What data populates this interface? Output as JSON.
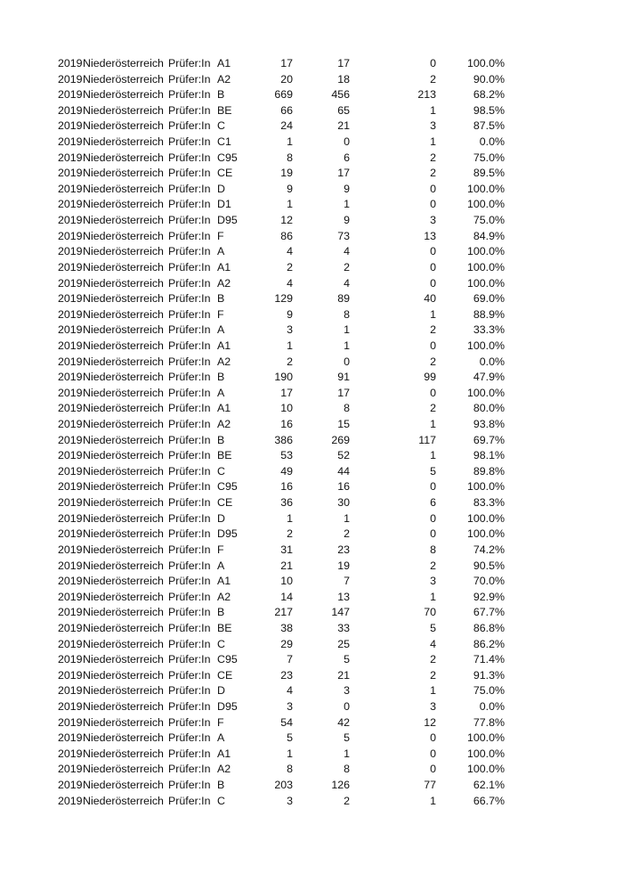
{
  "rows": [
    [
      "2019",
      "Niederösterreich",
      "Prüfer:In",
      "A1",
      "17",
      "17",
      "0",
      "100.0%"
    ],
    [
      "2019",
      "Niederösterreich",
      "Prüfer:In",
      "A2",
      "20",
      "18",
      "2",
      "90.0%"
    ],
    [
      "2019",
      "Niederösterreich",
      "Prüfer:In",
      "B",
      "669",
      "456",
      "213",
      "68.2%"
    ],
    [
      "2019",
      "Niederösterreich",
      "Prüfer:In",
      "BE",
      "66",
      "65",
      "1",
      "98.5%"
    ],
    [
      "2019",
      "Niederösterreich",
      "Prüfer:In",
      "C",
      "24",
      "21",
      "3",
      "87.5%"
    ],
    [
      "2019",
      "Niederösterreich",
      "Prüfer:In",
      "C1",
      "1",
      "0",
      "1",
      "0.0%"
    ],
    [
      "2019",
      "Niederösterreich",
      "Prüfer:In",
      "C95",
      "8",
      "6",
      "2",
      "75.0%"
    ],
    [
      "2019",
      "Niederösterreich",
      "Prüfer:In",
      "CE",
      "19",
      "17",
      "2",
      "89.5%"
    ],
    [
      "2019",
      "Niederösterreich",
      "Prüfer:In",
      "D",
      "9",
      "9",
      "0",
      "100.0%"
    ],
    [
      "2019",
      "Niederösterreich",
      "Prüfer:In",
      "D1",
      "1",
      "1",
      "0",
      "100.0%"
    ],
    [
      "2019",
      "Niederösterreich",
      "Prüfer:In",
      "D95",
      "12",
      "9",
      "3",
      "75.0%"
    ],
    [
      "2019",
      "Niederösterreich",
      "Prüfer:In",
      "F",
      "86",
      "73",
      "13",
      "84.9%"
    ],
    [
      "2019",
      "Niederösterreich",
      "Prüfer:In",
      "A",
      "4",
      "4",
      "0",
      "100.0%"
    ],
    [
      "2019",
      "Niederösterreich",
      "Prüfer:In",
      "A1",
      "2",
      "2",
      "0",
      "100.0%"
    ],
    [
      "2019",
      "Niederösterreich",
      "Prüfer:In",
      "A2",
      "4",
      "4",
      "0",
      "100.0%"
    ],
    [
      "2019",
      "Niederösterreich",
      "Prüfer:In",
      "B",
      "129",
      "89",
      "40",
      "69.0%"
    ],
    [
      "2019",
      "Niederösterreich",
      "Prüfer:In",
      "F",
      "9",
      "8",
      "1",
      "88.9%"
    ],
    [
      "2019",
      "Niederösterreich",
      "Prüfer:In",
      "A",
      "3",
      "1",
      "2",
      "33.3%"
    ],
    [
      "2019",
      "Niederösterreich",
      "Prüfer:In",
      "A1",
      "1",
      "1",
      "0",
      "100.0%"
    ],
    [
      "2019",
      "Niederösterreich",
      "Prüfer:In",
      "A2",
      "2",
      "0",
      "2",
      "0.0%"
    ],
    [
      "2019",
      "Niederösterreich",
      "Prüfer:In",
      "B",
      "190",
      "91",
      "99",
      "47.9%"
    ],
    [
      "2019",
      "Niederösterreich",
      "Prüfer:In",
      "A",
      "17",
      "17",
      "0",
      "100.0%"
    ],
    [
      "2019",
      "Niederösterreich",
      "Prüfer:In",
      "A1",
      "10",
      "8",
      "2",
      "80.0%"
    ],
    [
      "2019",
      "Niederösterreich",
      "Prüfer:In",
      "A2",
      "16",
      "15",
      "1",
      "93.8%"
    ],
    [
      "2019",
      "Niederösterreich",
      "Prüfer:In",
      "B",
      "386",
      "269",
      "117",
      "69.7%"
    ],
    [
      "2019",
      "Niederösterreich",
      "Prüfer:In",
      "BE",
      "53",
      "52",
      "1",
      "98.1%"
    ],
    [
      "2019",
      "Niederösterreich",
      "Prüfer:In",
      "C",
      "49",
      "44",
      "5",
      "89.8%"
    ],
    [
      "2019",
      "Niederösterreich",
      "Prüfer:In",
      "C95",
      "16",
      "16",
      "0",
      "100.0%"
    ],
    [
      "2019",
      "Niederösterreich",
      "Prüfer:In",
      "CE",
      "36",
      "30",
      "6",
      "83.3%"
    ],
    [
      "2019",
      "Niederösterreich",
      "Prüfer:In",
      "D",
      "1",
      "1",
      "0",
      "100.0%"
    ],
    [
      "2019",
      "Niederösterreich",
      "Prüfer:In",
      "D95",
      "2",
      "2",
      "0",
      "100.0%"
    ],
    [
      "2019",
      "Niederösterreich",
      "Prüfer:In",
      "F",
      "31",
      "23",
      "8",
      "74.2%"
    ],
    [
      "2019",
      "Niederösterreich",
      "Prüfer:In",
      "A",
      "21",
      "19",
      "2",
      "90.5%"
    ],
    [
      "2019",
      "Niederösterreich",
      "Prüfer:In",
      "A1",
      "10",
      "7",
      "3",
      "70.0%"
    ],
    [
      "2019",
      "Niederösterreich",
      "Prüfer:In",
      "A2",
      "14",
      "13",
      "1",
      "92.9%"
    ],
    [
      "2019",
      "Niederösterreich",
      "Prüfer:In",
      "B",
      "217",
      "147",
      "70",
      "67.7%"
    ],
    [
      "2019",
      "Niederösterreich",
      "Prüfer:In",
      "BE",
      "38",
      "33",
      "5",
      "86.8%"
    ],
    [
      "2019",
      "Niederösterreich",
      "Prüfer:In",
      "C",
      "29",
      "25",
      "4",
      "86.2%"
    ],
    [
      "2019",
      "Niederösterreich",
      "Prüfer:In",
      "C95",
      "7",
      "5",
      "2",
      "71.4%"
    ],
    [
      "2019",
      "Niederösterreich",
      "Prüfer:In",
      "CE",
      "23",
      "21",
      "2",
      "91.3%"
    ],
    [
      "2019",
      "Niederösterreich",
      "Prüfer:In",
      "D",
      "4",
      "3",
      "1",
      "75.0%"
    ],
    [
      "2019",
      "Niederösterreich",
      "Prüfer:In",
      "D95",
      "3",
      "0",
      "3",
      "0.0%"
    ],
    [
      "2019",
      "Niederösterreich",
      "Prüfer:In",
      "F",
      "54",
      "42",
      "12",
      "77.8%"
    ],
    [
      "2019",
      "Niederösterreich",
      "Prüfer:In",
      "A",
      "5",
      "5",
      "0",
      "100.0%"
    ],
    [
      "2019",
      "Niederösterreich",
      "Prüfer:In",
      "A1",
      "1",
      "1",
      "0",
      "100.0%"
    ],
    [
      "2019",
      "Niederösterreich",
      "Prüfer:In",
      "A2",
      "8",
      "8",
      "0",
      "100.0%"
    ],
    [
      "2019",
      "Niederösterreich",
      "Prüfer:In",
      "B",
      "203",
      "126",
      "77",
      "62.1%"
    ],
    [
      "2019",
      "Niederösterreich",
      "Prüfer:In",
      "C",
      "3",
      "2",
      "1",
      "66.7%"
    ]
  ]
}
